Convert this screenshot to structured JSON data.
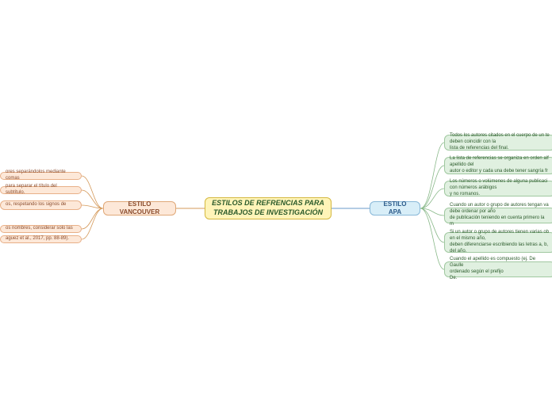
{
  "center": {
    "title": "ESTILOS DE REFRENCIAS PARA\nTRABAJOS DE INVESTIGACIÓN",
    "bg": "#fff4b8",
    "border": "#d4b840",
    "text": "#2a5a2a"
  },
  "left_branch": {
    "label": "ESTILO VANCOUVER",
    "bg": "#fde8d8",
    "border": "#e0a878",
    "text": "#8a4a2a",
    "leaves": [
      "ores separándolos mediante comas",
      "para separar el título del subtítulo.",
      "os, respetando los signos de",
      "os nombres, considerar solo las",
      "aguez et al., 2017, pp. 88-89)."
    ],
    "leaf_bg": "#fde8d8",
    "leaf_border": "#e8b088"
  },
  "right_branch": {
    "label": "ESTILO APA",
    "bg": "#d8eef8",
    "border": "#88b8d8",
    "text": "#2a5a8a",
    "leaves": [
      "Todos los autores citados en el cuerpo de un te\ndeben coincidir con la\nlista de referencias del final.",
      "La lista de referencias se organiza en orden alf\napellido del\nautor o editor y cada una debe tener sangría fr",
      "Los números o volúmenes de alguna publicaci\ncon números arábigos\ny no romanos.",
      "Cuando un autor o grupo de autores tengan va\ndebe ordenar por año\nde publicación teniendo en cuenta primero la m",
      "Si un autor o grupo de autores tienen varias ob\nen el mismo año,\ndeben diferenciarse escribiendo las letras a, b,\ndel año.",
      "Cuando el apellido es compuesto (ej. De Gaulle\nordenado según el prefijo\nDe."
    ],
    "leaf_bg": "#e0f0e0",
    "leaf_border": "#a0c8a0"
  },
  "connectors": {
    "center_left": "#d49858",
    "center_right": "#6898c8",
    "left_leaves": "#d49858",
    "right_leaves": "#88b888"
  }
}
